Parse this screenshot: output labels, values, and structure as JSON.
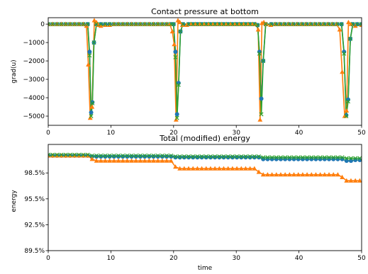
{
  "chart_data": [
    {
      "type": "line",
      "title": "Contact pressure at bottom",
      "xlabel": "",
      "ylabel": "grad(u)",
      "xlim": [
        0,
        50
      ],
      "ylim": [
        -5500,
        350
      ],
      "xticks": [
        0,
        10,
        20,
        30,
        40,
        50
      ],
      "xtick_labels": [
        "0",
        "10",
        "20",
        "30",
        "40",
        "50"
      ],
      "yticks": [
        0,
        -1000,
        -2000,
        -3000,
        -4000,
        -5000
      ],
      "ytick_labels": [
        "0",
        "−1000",
        "−2000",
        "−3000",
        "−4000",
        "−5000"
      ],
      "grid": false,
      "series": [
        {
          "color": "#1f77b4",
          "marker": "circle",
          "x": [
            0,
            0.7,
            1.4,
            2.1,
            2.8,
            3.5,
            4.2,
            4.9,
            5.6,
            6.3,
            6.6,
            6.85,
            7.05,
            7.3,
            7.7,
            8.4,
            9.1,
            9.8,
            10.5,
            11.2,
            11.9,
            12.6,
            13.3,
            14,
            14.7,
            15.4,
            16.1,
            16.8,
            17.5,
            18.2,
            18.9,
            19.6,
            20,
            20.3,
            20.55,
            20.8,
            21.1,
            21.5,
            22.4,
            23.1,
            23.8,
            24.5,
            25.2,
            25.9,
            26.6,
            27.3,
            28,
            28.7,
            29.4,
            30.1,
            30.8,
            31.5,
            32.2,
            32.9,
            33.4,
            33.7,
            34,
            34.3,
            34.7,
            35.6,
            36.3,
            37,
            37.7,
            38.4,
            39.1,
            39.8,
            40.5,
            41.2,
            41.9,
            42.6,
            43.3,
            44,
            44.7,
            45.4,
            46.1,
            46.8,
            47.2,
            47.55,
            47.85,
            48.2,
            48.6,
            49.3,
            50
          ],
          "y": [
            0,
            0,
            0,
            0,
            0,
            0,
            0,
            0,
            0,
            0,
            -1500,
            -4800,
            -4250,
            -1000,
            0,
            0,
            0,
            0,
            0,
            0,
            0,
            0,
            0,
            0,
            0,
            0,
            0,
            0,
            0,
            0,
            0,
            0,
            0,
            -1500,
            -4900,
            -3200,
            -400,
            0,
            0,
            0,
            0,
            0,
            0,
            0,
            0,
            0,
            0,
            0,
            0,
            0,
            0,
            0,
            0,
            0,
            -50,
            -1500,
            -4050,
            -2000,
            0,
            0,
            0,
            0,
            0,
            0,
            0,
            0,
            0,
            0,
            0,
            0,
            0,
            0,
            0,
            0,
            0,
            0,
            -1500,
            -4950,
            -4100,
            -800,
            0,
            0,
            0
          ]
        },
        {
          "color": "#ff7f0e",
          "marker": "triangle",
          "x": [
            0,
            0.7,
            1.4,
            2.1,
            2.8,
            3.5,
            4.2,
            4.9,
            5.6,
            6.1,
            6.4,
            6.7,
            7.0,
            7.35,
            7.7,
            8.0,
            8.4,
            9.1,
            9.8,
            10.5,
            11.2,
            11.9,
            12.6,
            13.3,
            14,
            14.7,
            15.4,
            16.1,
            16.8,
            17.5,
            18.2,
            18.9,
            19.4,
            19.8,
            20.1,
            20.4,
            20.7,
            21.0,
            21.4,
            22.1,
            22.8,
            23.5,
            24.2,
            24.9,
            25.6,
            26.3,
            27,
            27.7,
            28.4,
            29.1,
            29.8,
            30.5,
            31.2,
            31.9,
            32.6,
            33.1,
            33.5,
            33.8,
            34.1,
            34.4,
            34.8,
            35.5,
            36.2,
            36.9,
            37.6,
            38.3,
            39,
            39.7,
            40.4,
            41.1,
            41.8,
            42.5,
            43.2,
            43.9,
            44.6,
            45.3,
            46.0,
            46.5,
            46.9,
            47.3,
            47.6,
            47.9,
            48.3,
            49,
            50
          ],
          "y": [
            0,
            0,
            0,
            0,
            0,
            0,
            0,
            0,
            0,
            -100,
            -2200,
            -5100,
            -4500,
            200,
            100,
            -50,
            -100,
            -50,
            -50,
            0,
            0,
            0,
            0,
            0,
            0,
            0,
            0,
            0,
            0,
            0,
            0,
            0,
            0,
            -400,
            -1100,
            -5200,
            200,
            100,
            -50,
            -50,
            0,
            0,
            0,
            0,
            0,
            0,
            0,
            0,
            0,
            0,
            0,
            0,
            0,
            0,
            0,
            0,
            -300,
            -5200,
            50,
            100,
            0,
            -50,
            0,
            0,
            0,
            0,
            0,
            0,
            0,
            0,
            0,
            0,
            0,
            0,
            0,
            0,
            0,
            -300,
            -2600,
            -5000,
            -4700,
            100,
            0,
            -100,
            -50
          ]
        },
        {
          "color": "#2ca02c",
          "marker": "x",
          "x": [
            0,
            0.7,
            1.4,
            2.1,
            2.8,
            3.5,
            4.2,
            4.9,
            5.6,
            6.3,
            6.6,
            6.85,
            7.05,
            7.3,
            7.7,
            8.4,
            9.1,
            9.8,
            10.5,
            11.2,
            11.9,
            12.6,
            13.3,
            14,
            14.7,
            15.4,
            16.1,
            16.8,
            17.5,
            18.2,
            18.9,
            19.6,
            20,
            20.3,
            20.55,
            20.8,
            21.1,
            21.5,
            22.4,
            23.1,
            23.8,
            24.5,
            25.2,
            25.9,
            26.6,
            27.3,
            28,
            28.7,
            29.4,
            30.1,
            30.8,
            31.5,
            32.2,
            32.9,
            33.4,
            33.7,
            34,
            34.3,
            34.7,
            35.6,
            36.3,
            37,
            37.7,
            38.4,
            39.1,
            39.8,
            40.5,
            41.2,
            41.9,
            42.6,
            43.3,
            44,
            44.7,
            45.4,
            46.1,
            46.8,
            47.2,
            47.55,
            47.85,
            48.2,
            48.6,
            49.3,
            50
          ],
          "y": [
            0,
            0,
            0,
            0,
            0,
            0,
            0,
            0,
            0,
            0,
            -1700,
            -5000,
            -4300,
            -1000,
            0,
            0,
            0,
            0,
            0,
            0,
            0,
            0,
            0,
            0,
            0,
            0,
            0,
            0,
            0,
            0,
            0,
            0,
            0,
            -1800,
            -5100,
            -3300,
            -400,
            0,
            0,
            0,
            0,
            0,
            0,
            0,
            0,
            0,
            0,
            0,
            0,
            0,
            0,
            0,
            0,
            0,
            -50,
            -1600,
            -4900,
            -2000,
            0,
            0,
            0,
            0,
            0,
            0,
            0,
            0,
            0,
            0,
            0,
            0,
            0,
            0,
            0,
            0,
            0,
            0,
            -1600,
            -5000,
            -4200,
            -800,
            0,
            0,
            0
          ]
        }
      ]
    },
    {
      "type": "line",
      "title": "Total (modified) energy",
      "xlabel": "time",
      "ylabel": "energy",
      "xlim": [
        0,
        50
      ],
      "ylim": [
        89.5,
        101.8
      ],
      "xticks": [
        0,
        10,
        20,
        30,
        40,
        50
      ],
      "xtick_labels": [
        "0",
        "10",
        "20",
        "30",
        "40",
        "50"
      ],
      "yticks": [
        98.5,
        95.5,
        92.5,
        89.5
      ],
      "ytick_labels": [
        "98.5%",
        "95.5%",
        "92.5%",
        "89.5%"
      ],
      "grid": false,
      "series": [
        {
          "color": "#1f77b4",
          "marker": "circle",
          "x": [
            0,
            0.7,
            1.4,
            2.1,
            2.8,
            3.5,
            4.2,
            4.9,
            5.6,
            6.3,
            7,
            7.7,
            8.4,
            9.1,
            9.8,
            10.5,
            11.2,
            11.9,
            12.6,
            13.3,
            14,
            14.7,
            15.4,
            16.1,
            16.8,
            17.5,
            18.2,
            18.9,
            19.6,
            20.3,
            21,
            21.7,
            22.4,
            23.1,
            23.8,
            24.5,
            25.2,
            25.9,
            26.6,
            27.3,
            28,
            28.7,
            29.4,
            30.1,
            30.8,
            31.5,
            32.2,
            32.9,
            33.6,
            34.3,
            35,
            35.7,
            36.4,
            37.1,
            37.8,
            38.5,
            39.2,
            39.9,
            40.6,
            41.3,
            42,
            42.7,
            43.4,
            44.1,
            44.8,
            45.5,
            46.2,
            46.9,
            47.6,
            48.3,
            49,
            49.7
          ],
          "y": [
            100.5,
            100.5,
            100.5,
            100.5,
            100.5,
            100.5,
            100.5,
            100.5,
            100.5,
            100.5,
            100.4,
            100.4,
            100.4,
            100.4,
            100.4,
            100.4,
            100.4,
            100.4,
            100.4,
            100.4,
            100.4,
            100.4,
            100.4,
            100.4,
            100.4,
            100.4,
            100.4,
            100.4,
            100.4,
            100.3,
            100.3,
            100.3,
            100.3,
            100.3,
            100.3,
            100.3,
            100.3,
            100.3,
            100.3,
            100.3,
            100.3,
            100.3,
            100.3,
            100.3,
            100.3,
            100.3,
            100.3,
            100.3,
            100.3,
            100.1,
            100.1,
            100.1,
            100.1,
            100.1,
            100.1,
            100.1,
            100.1,
            100.1,
            100.1,
            100.1,
            100.1,
            100.1,
            100.1,
            100.1,
            100.1,
            100.1,
            100.1,
            100.1,
            99.9,
            99.9,
            100.0,
            100.0
          ]
        },
        {
          "color": "#ff7f0e",
          "marker": "triangle",
          "x": [
            0,
            0.7,
            1.4,
            2.1,
            2.8,
            3.5,
            4.2,
            4.9,
            5.6,
            6.3,
            7,
            7.7,
            8.4,
            9.1,
            9.8,
            10.5,
            11.2,
            11.9,
            12.6,
            13.3,
            14,
            14.7,
            15.4,
            16.1,
            16.8,
            17.5,
            18.2,
            18.9,
            19.6,
            20.3,
            21,
            21.7,
            22.4,
            23.1,
            23.8,
            24.5,
            25.2,
            25.9,
            26.6,
            27.3,
            28,
            28.7,
            29.4,
            30.1,
            30.8,
            31.5,
            32.2,
            32.9,
            33.6,
            34.3,
            35,
            35.7,
            36.4,
            37.1,
            37.8,
            38.5,
            39.2,
            39.9,
            40.6,
            41.3,
            42,
            42.7,
            43.4,
            44.1,
            44.8,
            45.5,
            46.2,
            46.9,
            47.6,
            48.3,
            49,
            49.7
          ],
          "y": [
            100.5,
            100.5,
            100.5,
            100.5,
            100.5,
            100.5,
            100.5,
            100.5,
            100.5,
            100.5,
            100.1,
            99.9,
            99.9,
            99.9,
            99.9,
            99.9,
            99.9,
            99.9,
            99.9,
            99.9,
            99.9,
            99.9,
            99.9,
            99.9,
            99.9,
            99.9,
            99.9,
            99.9,
            99.9,
            99.2,
            99.0,
            99.0,
            99.0,
            99.0,
            99.0,
            99.0,
            99.0,
            99.0,
            99.0,
            99.0,
            99.0,
            99.0,
            99.0,
            99.0,
            99.0,
            99.0,
            99.0,
            99.0,
            98.6,
            98.3,
            98.3,
            98.3,
            98.3,
            98.3,
            98.3,
            98.3,
            98.3,
            98.3,
            98.3,
            98.3,
            98.3,
            98.3,
            98.3,
            98.3,
            98.3,
            98.3,
            98.3,
            98.0,
            97.6,
            97.6,
            97.6,
            97.6
          ]
        },
        {
          "color": "#2ca02c",
          "marker": "x",
          "x": [
            0,
            0.7,
            1.4,
            2.1,
            2.8,
            3.5,
            4.2,
            4.9,
            5.6,
            6.3,
            7,
            7.7,
            8.4,
            9.1,
            9.8,
            10.5,
            11.2,
            11.9,
            12.6,
            13.3,
            14,
            14.7,
            15.4,
            16.1,
            16.8,
            17.5,
            18.2,
            18.9,
            19.6,
            20.3,
            21,
            21.7,
            22.4,
            23.1,
            23.8,
            24.5,
            25.2,
            25.9,
            26.6,
            27.3,
            28,
            28.7,
            29.4,
            30.1,
            30.8,
            31.5,
            32.2,
            32.9,
            33.6,
            34.3,
            35,
            35.7,
            36.4,
            37.1,
            37.8,
            38.5,
            39.2,
            39.9,
            40.6,
            41.3,
            42,
            42.7,
            43.4,
            44.1,
            44.8,
            45.5,
            46.2,
            46.9,
            47.6,
            48.3,
            49,
            49.7
          ],
          "y": [
            100.6,
            100.6,
            100.6,
            100.6,
            100.6,
            100.6,
            100.6,
            100.6,
            100.6,
            100.6,
            100.5,
            100.5,
            100.5,
            100.5,
            100.5,
            100.5,
            100.5,
            100.5,
            100.5,
            100.5,
            100.5,
            100.5,
            100.5,
            100.5,
            100.5,
            100.5,
            100.5,
            100.5,
            100.5,
            100.4,
            100.4,
            100.4,
            100.4,
            100.4,
            100.4,
            100.4,
            100.4,
            100.4,
            100.4,
            100.4,
            100.4,
            100.4,
            100.4,
            100.4,
            100.4,
            100.4,
            100.4,
            100.4,
            100.4,
            100.3,
            100.3,
            100.3,
            100.3,
            100.3,
            100.3,
            100.3,
            100.3,
            100.3,
            100.3,
            100.3,
            100.3,
            100.3,
            100.3,
            100.3,
            100.3,
            100.3,
            100.3,
            100.3,
            100.2,
            100.2,
            100.2,
            100.2
          ]
        }
      ]
    }
  ]
}
